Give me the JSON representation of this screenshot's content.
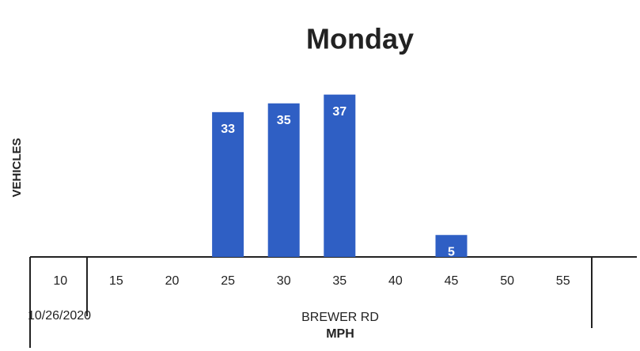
{
  "chart_data": {
    "type": "bar",
    "title": "Monday",
    "categories": [
      "10",
      "15",
      "20",
      "25",
      "30",
      "35",
      "40",
      "45",
      "50",
      "55"
    ],
    "values": [
      0,
      0,
      0,
      33,
      35,
      37,
      0,
      5,
      0,
      0
    ],
    "color": "#2f5fc4",
    "ylim": [
      0,
      40
    ],
    "ylabel": "VEHICLES",
    "xlabel": "MPH",
    "location": "BREWER RD",
    "date": "10/26/2020",
    "grid": false
  }
}
